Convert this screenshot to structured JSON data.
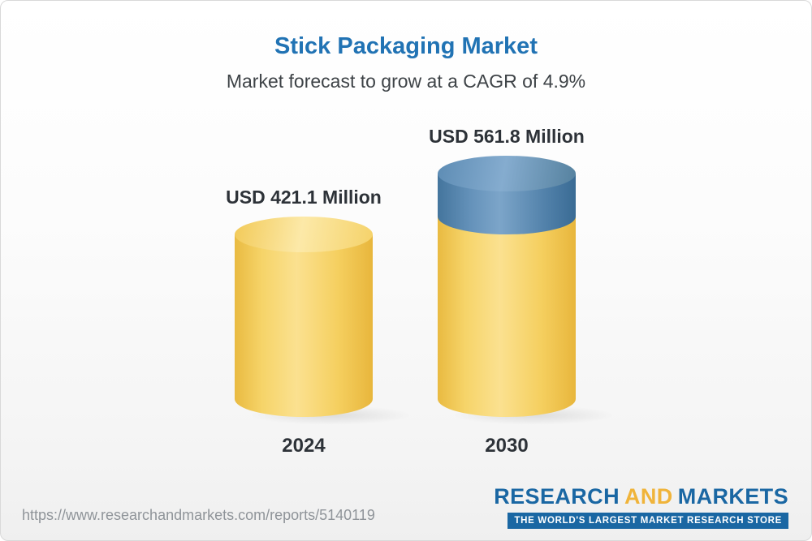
{
  "header": {
    "title": "Stick Packaging Market",
    "subtitle": "Market forecast to grow at a CAGR of 4.9%"
  },
  "chart_data": {
    "type": "bar",
    "style": "3d-cylinder",
    "categories": [
      "2024",
      "2030"
    ],
    "values": [
      421.1,
      561.8
    ],
    "value_labels": [
      "USD 421.1 Million",
      "USD 561.8 Million"
    ],
    "unit": "USD Million",
    "cagr_percent": 4.9,
    "title": "Stick Packaging Market",
    "subtitle": "Market forecast to grow at a CAGR of 4.9%",
    "ylim": [
      0,
      561.8
    ],
    "grid": false,
    "legend": false,
    "colors": {
      "base_segment": "#f6d169",
      "growth_segment": "#5e8db6",
      "title_text": "#2173b4"
    },
    "notes": "2030 cylinder shows the 2024 base value in yellow with the growth to 561.8 (140.7) as a blue top segment"
  },
  "footer": {
    "url": "https://www.researchandmarkets.com/reports/5140119",
    "logo": {
      "research": "RESEARCH",
      "and": "AND",
      "markets": "MARKETS",
      "tagline": "THE WORLD'S LARGEST MARKET RESEARCH STORE"
    }
  }
}
